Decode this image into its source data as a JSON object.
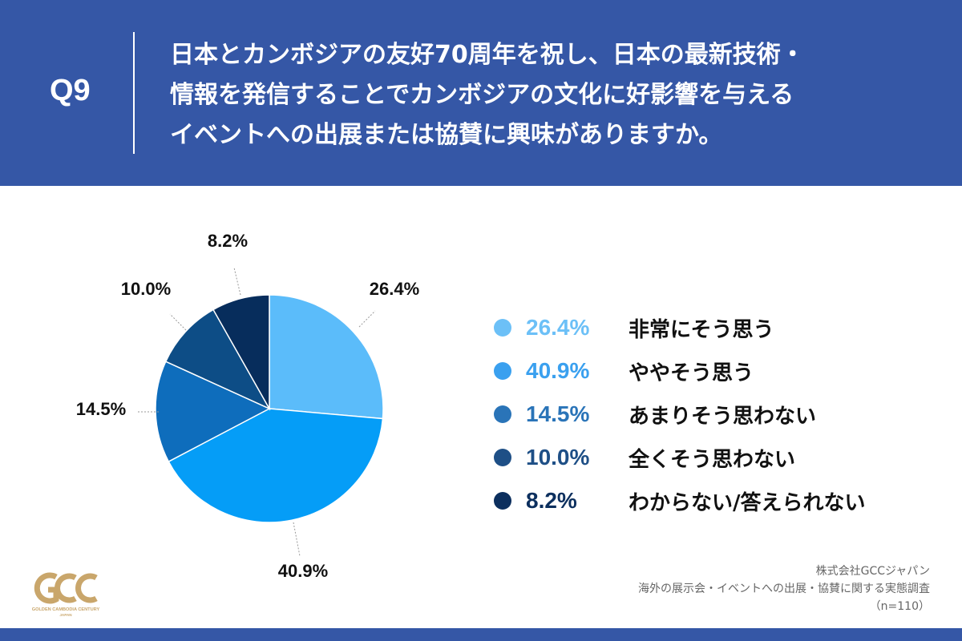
{
  "question": {
    "label": "Q9",
    "lines": [
      "日本とカンボジアの友好70周年を祝し、日本の最新技術・",
      "情報を発信することでカンボジアの文化に好影響を与える",
      "イベントへの出展または協賛に興味がありますか。"
    ]
  },
  "chart_data": {
    "type": "pie",
    "title": "",
    "categories": [
      "非常にそう思う",
      "ややそう思う",
      "あまりそう思わない",
      "全くそう思わない",
      "わからない/答えられない"
    ],
    "values": [
      26.4,
      40.9,
      14.5,
      10.0,
      8.2
    ],
    "value_labels": [
      "26.4%",
      "40.9%",
      "14.5%",
      "10.0%",
      "8.2%"
    ],
    "colors": [
      "#5bbcfa",
      "#059df7",
      "#0e6dbc",
      "#0d4d86",
      "#072d5c"
    ],
    "legend_colors": [
      "#6cc0f7",
      "#3aa0ef",
      "#2a74b8",
      "#1e4f86",
      "#0c2f5e"
    ],
    "legend_position": "right",
    "start_angle": "12 o'clock",
    "direction": "clockwise"
  },
  "logo": {
    "mark": "GCC",
    "subtitle": "GOLDEN CAMBODIA CENTURY",
    "sub2": "JAPAN",
    "color": "#c9a66b"
  },
  "source": {
    "company": "株式会社GCCジャパン",
    "survey": "海外の展示会・イベントへの出展・協賛に関する実態調査",
    "n": "（n=110）"
  }
}
